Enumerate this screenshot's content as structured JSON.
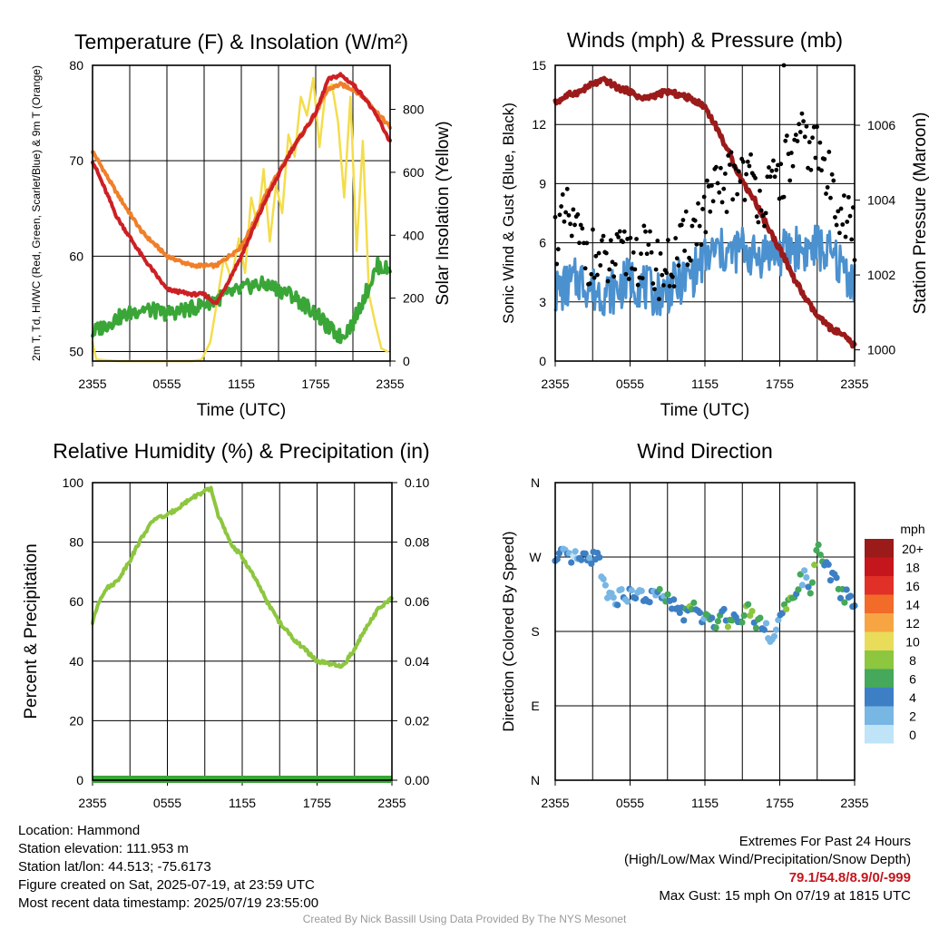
{
  "chart_data": [
    {
      "type": "line",
      "title": "Temperature (F) & Insolation (W/m²)",
      "xlabel": "Time (UTC)",
      "ylabel": "2m T, Td, HI/WC (Red, Green, Scarlet/Blue) & 9m T (Orange)",
      "ylabel_right": "Solar Insolation (Yellow)",
      "x_ticks": [
        "2355",
        "0555",
        "1155",
        "1755",
        "2355"
      ],
      "ylim": [
        49,
        80
      ],
      "yticks": [
        50,
        60,
        70,
        80
      ],
      "ylim_right": [
        0,
        940
      ],
      "yticks_right": [
        0,
        200,
        400,
        600,
        800
      ],
      "x_hours": [
        0,
        2,
        4,
        6,
        8,
        9,
        10,
        12,
        13,
        14,
        16,
        18,
        19,
        20,
        21,
        22,
        23,
        24
      ],
      "series": [
        {
          "key": "t2m",
          "color": "#cc2025",
          "axis": "left",
          "values": [
            70,
            64,
            60,
            56.5,
            56,
            56,
            55,
            60,
            63,
            66,
            71,
            75,
            78.5,
            79,
            78,
            76.5,
            74.5,
            72
          ]
        },
        {
          "key": "t9m",
          "color": "#f07f2a",
          "axis": "left",
          "values": [
            71,
            66.5,
            62.5,
            60,
            59,
            59,
            59,
            61,
            63.5,
            66.5,
            71,
            75,
            77.5,
            78,
            77.5,
            76.5,
            75,
            73.5
          ]
        },
        {
          "key": "td",
          "color": "#3aa638",
          "axis": "left",
          "values": [
            52,
            53.5,
            54.5,
            54,
            54.5,
            55,
            55.5,
            56.5,
            57,
            57,
            56,
            54,
            52.5,
            51.5,
            53,
            56,
            59,
            58.5
          ]
        },
        {
          "key": "solar",
          "color": "#f4dd4c",
          "axis": "right",
          "x_hours": [
            0,
            0.3,
            2,
            4,
            6,
            8,
            8.8,
            9.5,
            10,
            10.6,
            11.2,
            11.8,
            12.3,
            12.8,
            13.3,
            13.8,
            14.3,
            14.8,
            15.3,
            15.8,
            16.3,
            16.8,
            17.3,
            17.8,
            18.3,
            18.8,
            19.3,
            19.8,
            20.3,
            20.8,
            21.3,
            21.8,
            22.3,
            22.8,
            23.3,
            23.8
          ],
          "values": [
            60,
            5,
            0,
            0,
            0,
            0,
            5,
            60,
            180,
            330,
            260,
            390,
            280,
            520,
            430,
            610,
            380,
            560,
            470,
            720,
            650,
            840,
            780,
            900,
            680,
            860,
            880,
            760,
            520,
            840,
            350,
            700,
            210,
            120,
            40,
            30
          ]
        }
      ]
    },
    {
      "type": "scatter",
      "title": "Winds (mph) & Pressure (mb)",
      "xlabel": "Time (UTC)",
      "ylabel": "Sonic Wind & Gust (Blue, Black)",
      "ylabel_right": "Station Pressure (Maroon)",
      "x_ticks": [
        "2355",
        "0555",
        "1155",
        "1755",
        "2355"
      ],
      "ylim": [
        0,
        15
      ],
      "yticks": [
        0,
        3,
        6,
        9,
        12,
        15
      ],
      "ylim_right": [
        999.7,
        1007.6
      ],
      "yticks_right": [
        1000,
        1002,
        1004,
        1006
      ],
      "wind": {
        "color": "#4b91cf",
        "x_hours": [
          0,
          1,
          2,
          3,
          4,
          5,
          6,
          7,
          8,
          9,
          10,
          11,
          12,
          13,
          14,
          15,
          16,
          17,
          18,
          19,
          20,
          21,
          22,
          23,
          24
        ],
        "values": [
          3.5,
          3.8,
          4.2,
          3.6,
          3.5,
          3.6,
          4.2,
          3.8,
          3.4,
          3.6,
          4.0,
          4.4,
          5.2,
          5.6,
          5.4,
          5.8,
          5.2,
          5.6,
          5.4,
          5.8,
          5.6,
          5.8,
          5.4,
          4.8,
          4.0
        ]
      },
      "gust": {
        "color": "#000000",
        "x_hours": [
          0,
          1,
          2,
          3,
          4,
          5,
          6,
          7,
          8,
          9,
          10,
          11,
          12,
          13,
          14,
          15,
          16,
          17,
          18,
          19,
          20,
          21,
          22,
          23,
          24
        ],
        "values": [
          6.4,
          7.2,
          6.0,
          5.2,
          4.8,
          5.0,
          5.4,
          5.4,
          4.8,
          4.6,
          5.4,
          6.6,
          7.6,
          8.4,
          9.2,
          9.8,
          8.8,
          8.2,
          9.4,
          10.4,
          11.2,
          10.6,
          9.0,
          7.8,
          6.2
        ]
      },
      "max_gust_point": {
        "x_hour": 18.33,
        "value": 15
      },
      "pressure": {
        "color": "#9b1a1a",
        "x_hours": [
          0,
          1,
          2,
          3,
          4,
          5,
          6,
          7,
          8,
          9,
          10,
          11,
          12,
          13,
          14,
          15,
          16,
          17,
          18,
          19,
          20,
          21,
          22,
          23,
          24
        ],
        "values": [
          1006.6,
          1006.8,
          1006.9,
          1007.1,
          1007.2,
          1007.0,
          1006.9,
          1006.7,
          1006.8,
          1006.9,
          1006.8,
          1006.7,
          1006.5,
          1005.9,
          1005.2,
          1004.5,
          1004.0,
          1003.3,
          1002.7,
          1002.0,
          1001.4,
          1000.9,
          1000.6,
          1000.4,
          1000.1
        ]
      }
    },
    {
      "type": "line",
      "title": "Relative Humidity (%) & Precipitation (in)",
      "ylabel": "Percent & Precipitation",
      "x_ticks": [
        "2355",
        "0555",
        "1155",
        "1755",
        "2355"
      ],
      "ylim": [
        0,
        100
      ],
      "yticks": [
        0,
        20,
        40,
        60,
        80,
        100
      ],
      "ylim_right": [
        0,
        0.1
      ],
      "yticks_right": [
        "0.00",
        "0.02",
        "0.04",
        "0.06",
        "0.08",
        "0.10"
      ],
      "rh": {
        "color": "#8dc63f",
        "x_hours": [
          0,
          0.5,
          1,
          2,
          3,
          4,
          5,
          6,
          7,
          8,
          9,
          9.5,
          10,
          11,
          12,
          13,
          14,
          15,
          16,
          17,
          18,
          19,
          20,
          21,
          22,
          23,
          24
        ],
        "values": [
          53,
          60,
          64,
          67,
          74,
          82,
          88,
          89,
          92,
          95,
          97,
          98,
          90,
          80,
          75,
          68,
          60,
          53,
          48,
          44,
          40,
          39,
          38,
          44,
          52,
          58,
          61
        ]
      },
      "precip": {
        "color": "#3aa638",
        "x_hours": [
          0,
          24
        ],
        "values": [
          0,
          0
        ]
      }
    },
    {
      "type": "scatter",
      "title": "Wind Direction",
      "ylabel": "Direction (Colored By Speed)",
      "x_ticks": [
        "2355",
        "0555",
        "1155",
        "1755",
        "2355"
      ],
      "y_ticks": [
        "N",
        "E",
        "S",
        "W",
        "N"
      ],
      "ylim": [
        0,
        360
      ],
      "legend_title": "mph",
      "legend_labels": [
        "20+",
        "18",
        "16",
        "14",
        "12",
        "10",
        "8",
        "6",
        "4",
        "2",
        "0"
      ],
      "legend_colors": [
        "#9b1a1a",
        "#c4161c",
        "#e03027",
        "#f26b29",
        "#f7a543",
        "#e8dc5a",
        "#8dc63f",
        "#45a85a",
        "#3d7fc4",
        "#78b6e4",
        "#bfe3f7"
      ],
      "x_hours": [
        0,
        0.5,
        1,
        1.5,
        2,
        2.5,
        3,
        3.5,
        4,
        4.5,
        5,
        5.5,
        6,
        6.5,
        7,
        7.5,
        8,
        8.5,
        9,
        9.5,
        10,
        10.5,
        11,
        11.5,
        12,
        12.5,
        13,
        13.5,
        14,
        14.5,
        15,
        15.5,
        16,
        16.5,
        17,
        17.5,
        18,
        18.5,
        19,
        19.5,
        20,
        20.5,
        21,
        21.5,
        22,
        22.5,
        23,
        23.5,
        24
      ],
      "directions": [
        262,
        272,
        268,
        270,
        267,
        265,
        272,
        268,
        232,
        225,
        218,
        228,
        222,
        225,
        222,
        220,
        225,
        223,
        218,
        210,
        205,
        200,
        210,
        202,
        195,
        188,
        195,
        205,
        190,
        198,
        200,
        210,
        192,
        195,
        180,
        170,
        200,
        205,
        220,
        240,
        245,
        230,
        280,
        265,
        250,
        240,
        225,
        222,
        212
      ],
      "speeds": [
        3,
        4,
        3,
        2,
        3,
        3,
        4,
        2,
        2,
        1,
        3,
        2,
        4,
        3,
        3,
        4,
        3,
        4,
        4,
        3,
        3,
        5,
        7,
        4,
        4,
        5,
        6,
        5,
        7,
        4,
        6,
        7,
        5,
        6,
        3,
        2,
        4,
        6,
        7,
        5,
        2,
        6,
        7,
        5,
        4,
        6,
        5,
        4,
        3
      ]
    }
  ],
  "info": {
    "location": "Location: Hammond",
    "elevation": "Station elevation: 111.953 m",
    "latlon": "Station lat/lon: 44.513; -75.6173",
    "created": "Figure created on Sat, 2025-07-19, at 23:59 UTC",
    "recent": "Most recent data timestamp: 2025/07/19 23:55:00"
  },
  "extremes": {
    "title": "Extremes For Past 24 Hours",
    "subtitle": "(High/Low/Max Wind/Precipitation/Snow Depth)",
    "values": "79.1/54.8/8.9/0/-999",
    "max_gust": "Max Gust: 15 mph On 07/19 at 1815 UTC"
  },
  "credit": "Created By Nick Bassill Using Data Provided By The NYS Mesonet"
}
